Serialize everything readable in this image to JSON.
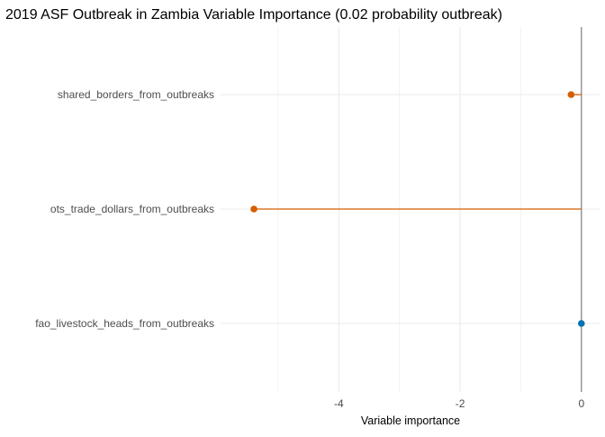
{
  "chart_data": {
    "type": "lollipop",
    "title": "2019 ASF Outbreak in Zambia Variable Importance (0.02 probability outbreak)",
    "xlabel": "Variable importance",
    "ylabel": "",
    "xlim": [
      -5.95,
      0.3
    ],
    "x_ticks": [
      -4,
      -2,
      0
    ],
    "x_tick_labels": [
      "-4",
      "-2",
      "0"
    ],
    "x_minor_ticks": [
      -5,
      -3,
      -1
    ],
    "grid": true,
    "zero_line": true,
    "categories": [
      "shared_borders_from_outbreaks",
      "ots_trade_dollars_from_outbreaks",
      "fao_livestock_heads_from_outbreaks"
    ],
    "values": [
      -0.17,
      -5.4,
      0.0
    ],
    "point_colors": [
      "#d55e00",
      "#d55e00",
      "#0072b2"
    ],
    "colors": {
      "negative": "#d55e00",
      "positive": "#0072b2",
      "grid": "#ebebeb",
      "zero_line": "#7f7f7f"
    }
  }
}
